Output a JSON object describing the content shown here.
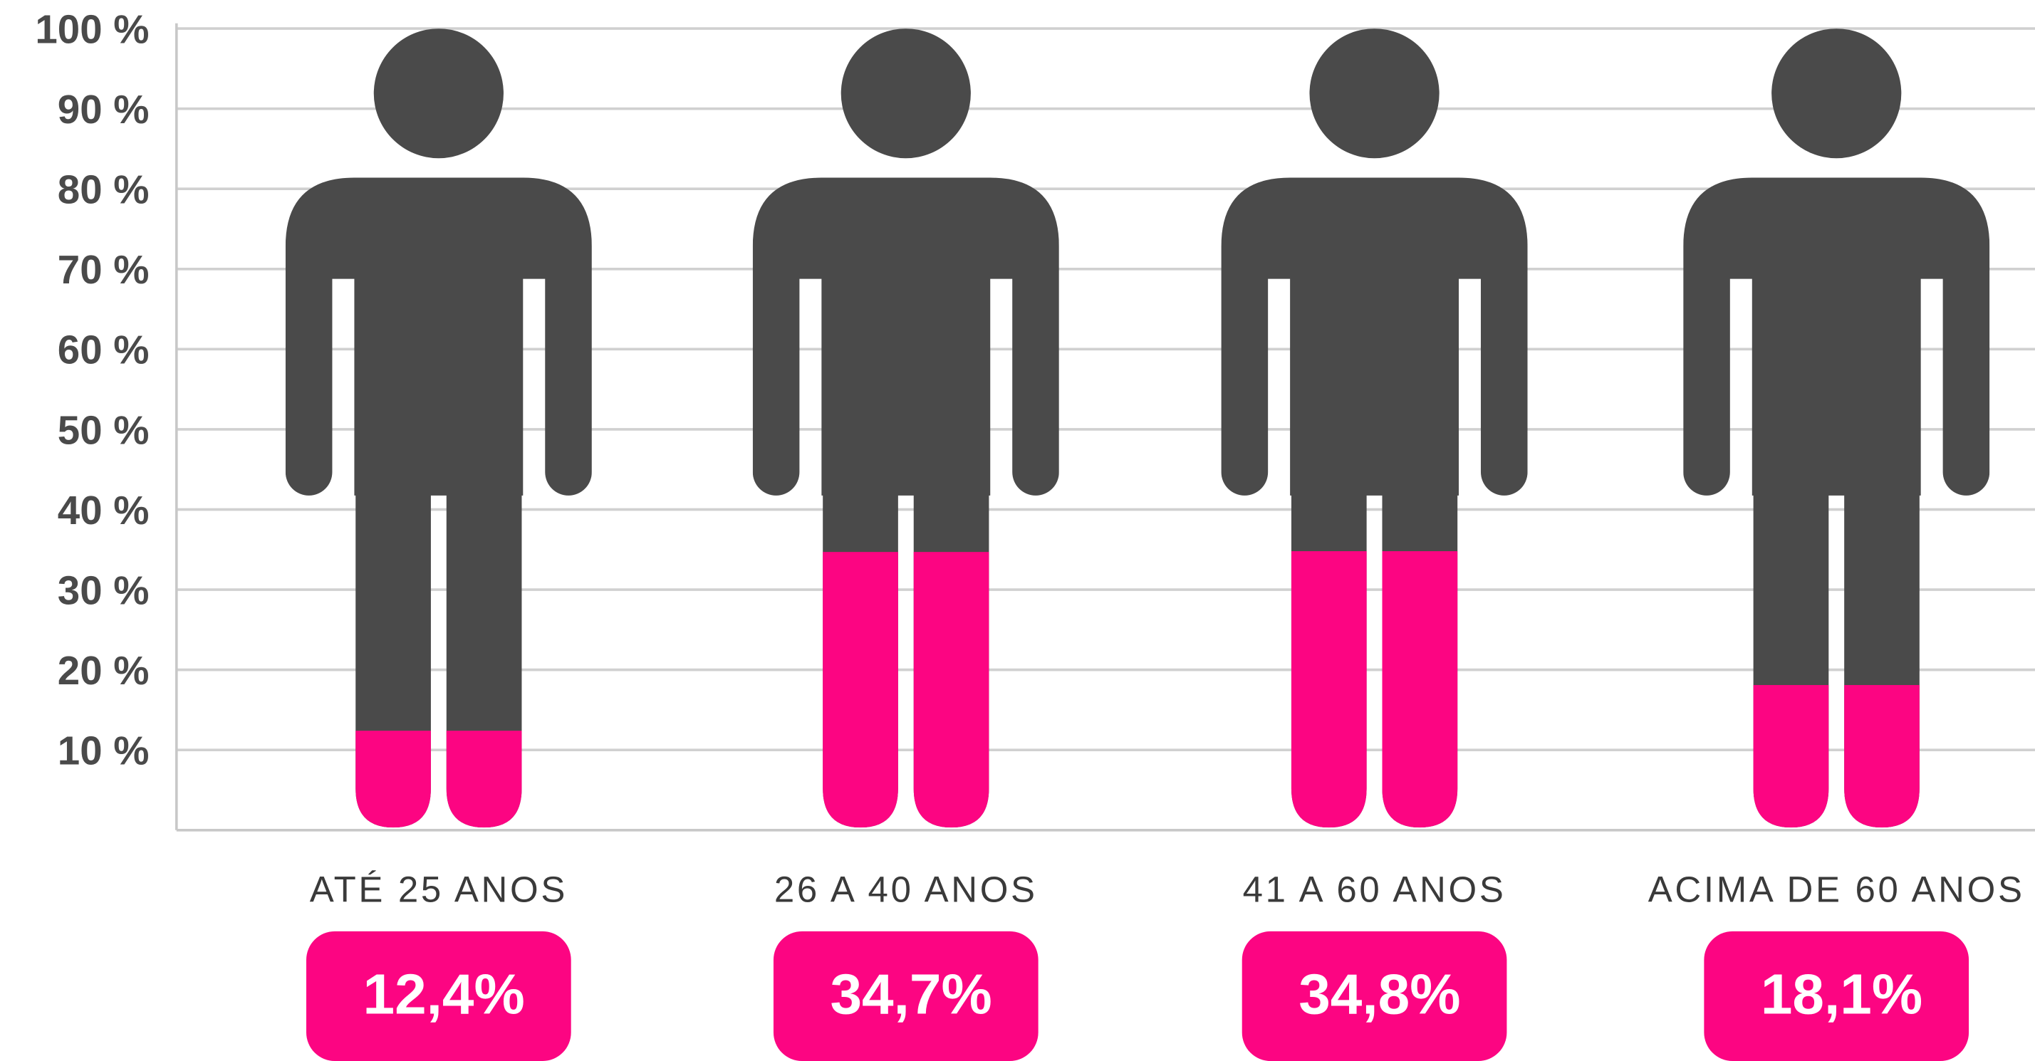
{
  "chart_data": {
    "type": "pictograph",
    "categories": [
      "ATÉ 25 ANOS",
      "26 A 40 ANOS",
      "41 A 60 ANOS",
      "ACIMA DE 60 ANOS"
    ],
    "values": [
      12.4,
      34.7,
      34.8,
      18.1
    ],
    "value_labels": [
      "12,4%",
      "34,7%",
      "34,8%",
      "18,1%"
    ],
    "color": "#fc0582",
    "base_color": "#4a4a4a",
    "ylim": [
      0,
      100
    ],
    "yticks": [
      {
        "value": 10,
        "label": "10 %"
      },
      {
        "value": 20,
        "label": "20 %"
      },
      {
        "value": 30,
        "label": "30 %"
      },
      {
        "value": 40,
        "label": "40 %"
      },
      {
        "value": 50,
        "label": "50 %"
      },
      {
        "value": 60,
        "label": "60 %"
      },
      {
        "value": 70,
        "label": "70 %"
      },
      {
        "value": 80,
        "label": "80 %"
      },
      {
        "value": 90,
        "label": "90 %"
      },
      {
        "value": 100,
        "label": "100 %"
      }
    ],
    "grid": true
  }
}
